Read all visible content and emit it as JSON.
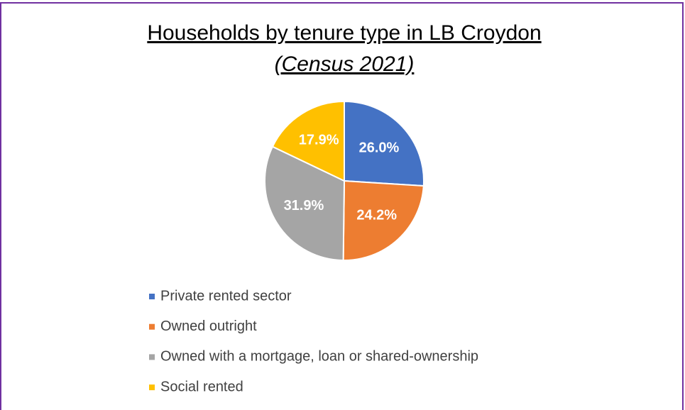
{
  "chart_data": {
    "type": "pie",
    "title": "Households by tenure type in LB Croydon",
    "subtitle": "(Census 2021)",
    "categories": [
      "Private rented sector",
      "Owned outright",
      "Owned with a mortgage, loan or shared-ownership",
      "Social rented"
    ],
    "values": [
      26.0,
      24.2,
      31.9,
      17.9
    ],
    "value_labels": [
      "26.0%",
      "24.2%",
      "31.9%",
      "17.9%"
    ],
    "colors": [
      "#4472c4",
      "#ed7d31",
      "#a5a5a5",
      "#ffc000"
    ],
    "legend": "bottom"
  }
}
